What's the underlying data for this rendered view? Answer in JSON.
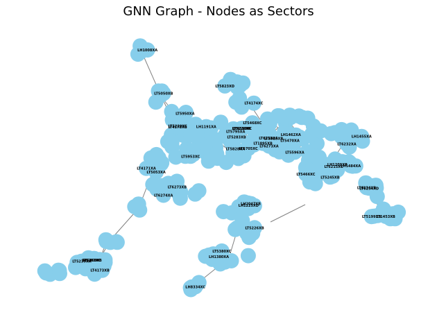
{
  "title": "GNN Graph - Nodes as Sectors",
  "style": {
    "node_color": "#87ceeb",
    "edge_color": "#808080",
    "label_color": "#000000"
  },
  "labeled_nodes": [
    "LH1008XA",
    "LT5050XB",
    "LT5950XA",
    "LT5823XD",
    "LT4174XC",
    "LT5953XC",
    "LT5283XB",
    "LT5828XA",
    "LT4510XC",
    "LH1191XA",
    "LT5229XC",
    "LT5705XC",
    "LT5228XB",
    "LT5795XA",
    "LT4178XB",
    "LT6233XA",
    "LT5596XA",
    "LH1462XA",
    "LT5468XC",
    "LT1895XB",
    "LT5470XA",
    "LT5925XB",
    "LT6273XA",
    "LT5466XC",
    "LT5245XB",
    "LH1209XB",
    "LT6215XC",
    "LH1484XA",
    "LH1455XA",
    "LT6232XA",
    "LT6234XD",
    "LT6234XB",
    "LT1453XB",
    "LT5199XB",
    "LT6273XB",
    "LT6274XA",
    "LT4171XA",
    "LT5053XA",
    "LH2047XB",
    "LH1225XD",
    "LT5226XB",
    "LT5380XC",
    "LH1380XA",
    "LH8334XC",
    "LT4173XB",
    "LT5239XA",
    "LT5283XC",
    "LT5468XB"
  ]
}
